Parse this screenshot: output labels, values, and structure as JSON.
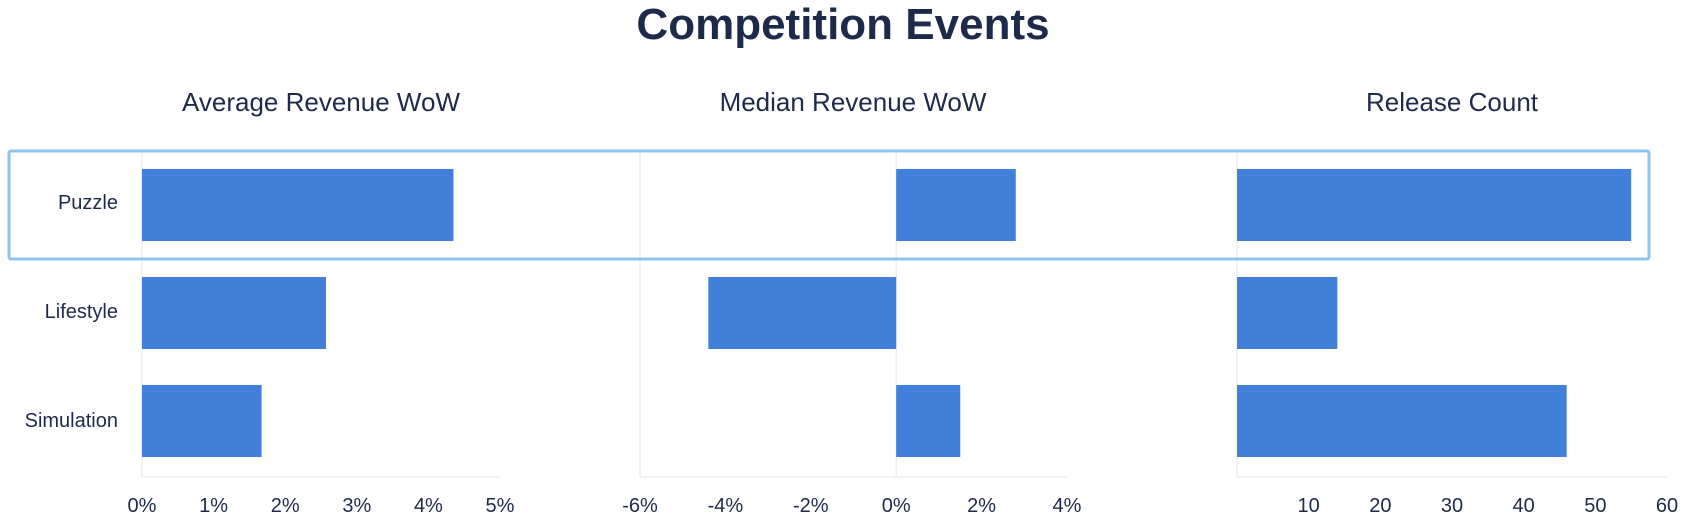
{
  "title": "Competition Events",
  "chart_data": {
    "type": "bar",
    "orientation": "horizontal",
    "categories": [
      "Puzzle",
      "Lifestyle",
      "Simulation"
    ],
    "highlighted_category": "Puzzle",
    "bar_color": "#4180d8",
    "highlight_color": "#8ec4f2",
    "panels": [
      {
        "title": "Average Revenue WoW",
        "values": [
          4.35,
          2.57,
          1.67
        ],
        "xlim": [
          0,
          5
        ],
        "ticks": [
          0,
          1,
          2,
          3,
          4,
          5
        ],
        "tick_labels": [
          "0%",
          "1%",
          "2%",
          "3%",
          "4%",
          "5%"
        ]
      },
      {
        "title": "Median Revenue WoW",
        "values": [
          2.8,
          -4.4,
          1.5
        ],
        "xlim": [
          -6,
          4
        ],
        "ticks": [
          -6,
          -4,
          -2,
          0,
          2,
          4
        ],
        "tick_labels": [
          "-6%",
          "-4%",
          "-2%",
          "0%",
          "2%",
          "4%"
        ]
      },
      {
        "title": "Release Count",
        "values": [
          55,
          14,
          46
        ],
        "xlim": [
          0,
          60
        ],
        "ticks": [
          10,
          20,
          30,
          40,
          50,
          60
        ],
        "tick_labels": [
          "10",
          "20",
          "30",
          "40",
          "50",
          "60"
        ]
      }
    ]
  }
}
